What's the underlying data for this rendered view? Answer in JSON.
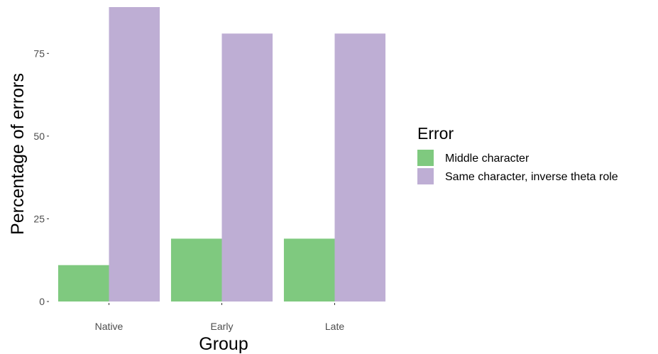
{
  "chart_data": {
    "type": "bar",
    "categories": [
      "Native",
      "Early",
      "Late"
    ],
    "series": [
      {
        "name": "Middle character",
        "values": [
          11,
          19,
          19
        ],
        "color": "#7fc97f"
      },
      {
        "name": "Same character, inverse theta role",
        "values": [
          89,
          81,
          81
        ],
        "color": "#beaed4"
      }
    ],
    "xlabel": "Group",
    "ylabel": "Percentage of errors",
    "ylim": [
      0,
      89
    ],
    "yticks": [
      0,
      25,
      50,
      75
    ],
    "ytick_labels": [
      "0",
      "25",
      "50",
      "75"
    ],
    "legend": {
      "title": "Error",
      "position": "right"
    },
    "grid": false
  }
}
